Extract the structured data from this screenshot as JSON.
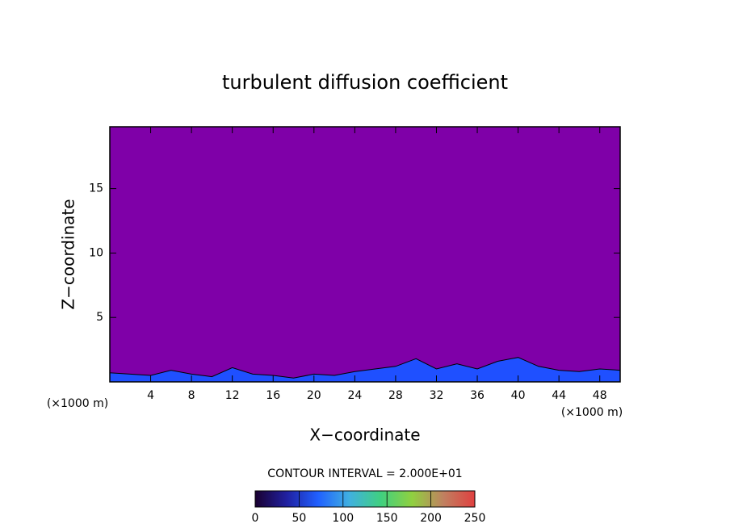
{
  "chart_data": {
    "type": "contour",
    "title": "turbulent diffusion coefficient",
    "xlabel": "X−coordinate",
    "ylabel": "Z−coordinate",
    "x_unit": "(×1000 m)",
    "y_unit": "(×1000 m)",
    "xlim": [
      0,
      50
    ],
    "ylim": [
      0,
      19.8
    ],
    "xticks": [
      4,
      8,
      12,
      16,
      20,
      24,
      28,
      32,
      36,
      40,
      44,
      48
    ],
    "yticks": [
      5,
      10,
      15
    ],
    "background_color": "#7f00a8",
    "x": [
      0,
      2,
      4,
      6,
      8,
      10,
      12,
      14,
      16,
      18,
      20,
      22,
      24,
      26,
      28,
      30,
      32,
      34,
      36,
      38,
      40,
      42,
      44,
      46,
      48,
      50
    ],
    "series": [
      {
        "color": "#1f50ff",
        "values": [
          0.7,
          0.6,
          0.5,
          0.9,
          0.6,
          0.4,
          1.1,
          0.6,
          0.5,
          0.3,
          0.6,
          0.5,
          0.8,
          1.0,
          1.2,
          1.8,
          1.0,
          1.4,
          1.0,
          1.6,
          1.9,
          1.2,
          0.9,
          0.8,
          1.0,
          0.9
        ]
      }
    ],
    "contour_note": "CONTOUR INTERVAL = 2.000E+01",
    "colorbar": {
      "lim": [
        0,
        250
      ],
      "ticks": [
        0,
        50,
        100,
        150,
        200,
        250
      ],
      "colors": [
        "#1a0030",
        "#2020a0",
        "#2060ff",
        "#40b0e0",
        "#40d080",
        "#90d040",
        "#c08060",
        "#e04040"
      ]
    }
  }
}
